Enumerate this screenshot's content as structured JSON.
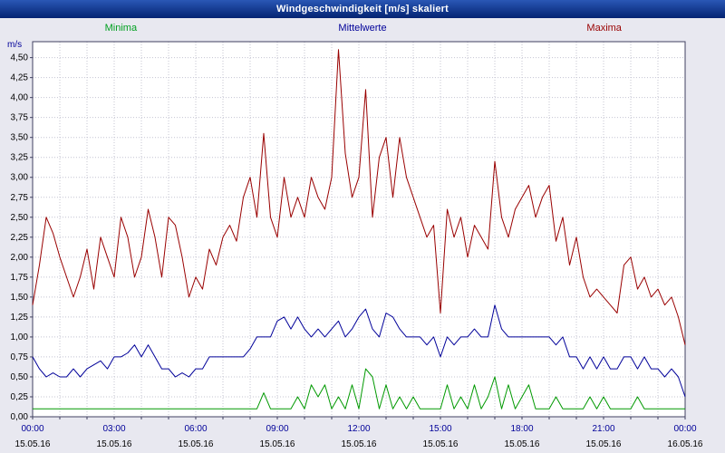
{
  "window": {
    "title": "Windgeschwindigkeit [m/s] skaliert"
  },
  "legend": [
    {
      "label": "Minima",
      "color": "#00a020"
    },
    {
      "label": "Mittelwerte",
      "color": "#000099"
    },
    {
      "label": "Maxima",
      "color": "#990000"
    }
  ],
  "chart_data": {
    "type": "line",
    "title": "Windgeschwindigkeit [m/s] skaliert",
    "ylabel": "m/s",
    "ylim": [
      0,
      4.7
    ],
    "y_tick_step": 0.25,
    "y_tick_labels": [
      "0,00",
      "0,25",
      "0,50",
      "0,75",
      "1,00",
      "1,25",
      "1,50",
      "1,75",
      "2,00",
      "2,25",
      "2,50",
      "2,75",
      "3,00",
      "3,25",
      "3,50",
      "3,75",
      "4,00",
      "4,25",
      "4,50"
    ],
    "x_minutes_range": [
      0,
      1440
    ],
    "x_ticks": [
      {
        "time": "00:00",
        "date": "15.05.16"
      },
      {
        "time": "03:00",
        "date": "15.05.16"
      },
      {
        "time": "06:00",
        "date": "15.05.16"
      },
      {
        "time": "09:00",
        "date": "15.05.16"
      },
      {
        "time": "12:00",
        "date": "15.05.16"
      },
      {
        "time": "15:00",
        "date": "15.05.16"
      },
      {
        "time": "18:00",
        "date": "15.05.16"
      },
      {
        "time": "21:00",
        "date": "15.05.16"
      },
      {
        "time": "00:00",
        "date": "16.05.16"
      }
    ],
    "grid": {
      "vertical_every_minutes": 60,
      "horizontal_every": 0.25,
      "style": "dotted"
    },
    "legend_position": "top",
    "sample_interval_minutes": 15,
    "series": [
      {
        "name": "Maxima",
        "color": "#990000",
        "values": [
          1.4,
          1.9,
          2.5,
          2.3,
          2.0,
          1.75,
          1.5,
          1.75,
          2.1,
          1.6,
          2.25,
          2.0,
          1.75,
          2.5,
          2.25,
          1.75,
          2.0,
          2.6,
          2.25,
          1.75,
          2.5,
          2.4,
          2.0,
          1.5,
          1.75,
          1.6,
          2.1,
          1.9,
          2.25,
          2.4,
          2.2,
          2.75,
          3.0,
          2.5,
          3.55,
          2.5,
          2.25,
          3.0,
          2.5,
          2.75,
          2.5,
          3.0,
          2.75,
          2.6,
          3.0,
          4.6,
          3.3,
          2.75,
          3.0,
          4.1,
          2.5,
          3.25,
          3.5,
          2.75,
          3.5,
          3.0,
          2.75,
          2.5,
          2.25,
          2.4,
          1.3,
          2.6,
          2.25,
          2.5,
          2.0,
          2.4,
          2.25,
          2.1,
          3.2,
          2.5,
          2.25,
          2.6,
          2.75,
          2.9,
          2.5,
          2.75,
          2.9,
          2.2,
          2.5,
          1.9,
          2.25,
          1.75,
          1.5,
          1.6,
          1.5,
          1.4,
          1.3,
          1.9,
          2.0,
          1.6,
          1.75,
          1.5,
          1.6,
          1.4,
          1.5,
          1.25,
          0.9
        ]
      },
      {
        "name": "Mittelwerte",
        "color": "#000099",
        "values": [
          0.75,
          0.6,
          0.5,
          0.55,
          0.5,
          0.5,
          0.6,
          0.5,
          0.6,
          0.65,
          0.7,
          0.6,
          0.75,
          0.75,
          0.8,
          0.9,
          0.75,
          0.9,
          0.75,
          0.6,
          0.6,
          0.5,
          0.55,
          0.5,
          0.6,
          0.6,
          0.75,
          0.75,
          0.75,
          0.75,
          0.75,
          0.75,
          0.85,
          1.0,
          1.0,
          1.0,
          1.2,
          1.25,
          1.1,
          1.25,
          1.1,
          1.0,
          1.1,
          1.0,
          1.1,
          1.2,
          1.0,
          1.1,
          1.25,
          1.35,
          1.1,
          1.0,
          1.3,
          1.25,
          1.1,
          1.0,
          1.0,
          1.0,
          0.9,
          1.0,
          0.75,
          1.0,
          0.9,
          1.0,
          1.0,
          1.1,
          1.0,
          1.0,
          1.4,
          1.1,
          1.0,
          1.0,
          1.0,
          1.0,
          1.0,
          1.0,
          1.0,
          0.9,
          1.0,
          0.75,
          0.75,
          0.6,
          0.75,
          0.6,
          0.75,
          0.6,
          0.6,
          0.75,
          0.75,
          0.6,
          0.75,
          0.6,
          0.6,
          0.5,
          0.6,
          0.5,
          0.25
        ]
      },
      {
        "name": "Minima",
        "color": "#009900",
        "values": [
          0.1,
          0.1,
          0.1,
          0.1,
          0.1,
          0.1,
          0.1,
          0.1,
          0.1,
          0.1,
          0.1,
          0.1,
          0.1,
          0.1,
          0.1,
          0.1,
          0.1,
          0.1,
          0.1,
          0.1,
          0.1,
          0.1,
          0.1,
          0.1,
          0.1,
          0.1,
          0.1,
          0.1,
          0.1,
          0.1,
          0.1,
          0.1,
          0.1,
          0.1,
          0.3,
          0.1,
          0.1,
          0.1,
          0.1,
          0.25,
          0.1,
          0.4,
          0.25,
          0.4,
          0.1,
          0.25,
          0.1,
          0.4,
          0.1,
          0.6,
          0.5,
          0.1,
          0.4,
          0.1,
          0.25,
          0.1,
          0.25,
          0.1,
          0.1,
          0.1,
          0.1,
          0.4,
          0.1,
          0.25,
          0.1,
          0.4,
          0.1,
          0.25,
          0.5,
          0.1,
          0.4,
          0.1,
          0.25,
          0.4,
          0.1,
          0.1,
          0.1,
          0.25,
          0.1,
          0.1,
          0.1,
          0.1,
          0.25,
          0.1,
          0.25,
          0.1,
          0.1,
          0.1,
          0.1,
          0.25,
          0.1,
          0.1,
          0.1,
          0.1,
          0.1,
          0.1,
          0.1
        ]
      }
    ]
  }
}
